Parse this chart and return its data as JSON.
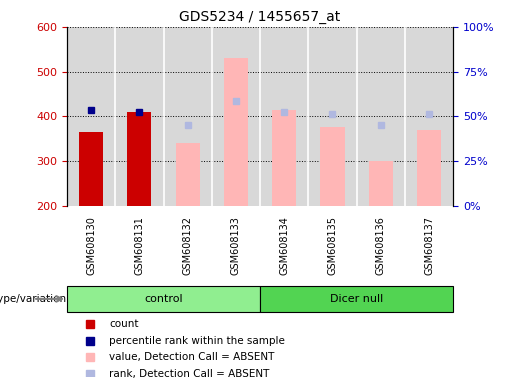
{
  "title": "GDS5234 / 1455657_at",
  "samples": [
    "GSM608130",
    "GSM608131",
    "GSM608132",
    "GSM608133",
    "GSM608134",
    "GSM608135",
    "GSM608136",
    "GSM608137"
  ],
  "groups": [
    {
      "label": "control",
      "indices": [
        0,
        1,
        2,
        3
      ],
      "color": "#90ee90"
    },
    {
      "label": "Dicer null",
      "indices": [
        4,
        5,
        6,
        7
      ],
      "color": "#52d452"
    }
  ],
  "count_values": [
    365,
    410,
    null,
    null,
    null,
    null,
    null,
    null
  ],
  "count_color": "#cc0000",
  "percentile_values": [
    415,
    410,
    null,
    null,
    null,
    null,
    null,
    null
  ],
  "percentile_color": "#00008b",
  "value_absent": [
    null,
    null,
    340,
    530,
    415,
    375,
    300,
    370
  ],
  "value_absent_color": "#ffb6b6",
  "rank_absent": [
    null,
    null,
    380,
    435,
    410,
    405,
    380,
    405
  ],
  "rank_absent_color": "#b0b8e0",
  "ylim_left": [
    200,
    600
  ],
  "ylim_right": [
    0,
    100
  ],
  "yticks_left": [
    200,
    300,
    400,
    500,
    600
  ],
  "yticks_right": [
    0,
    25,
    50,
    75,
    100
  ],
  "bar_width": 0.5,
  "plot_bg": "#d8d8d8",
  "genotype_label": "genotype/variation",
  "legend_items": [
    {
      "label": "count",
      "color": "#cc0000"
    },
    {
      "label": "percentile rank within the sample",
      "color": "#00008b"
    },
    {
      "label": "value, Detection Call = ABSENT",
      "color": "#ffb6b6"
    },
    {
      "label": "rank, Detection Call = ABSENT",
      "color": "#b0b8e0"
    }
  ]
}
